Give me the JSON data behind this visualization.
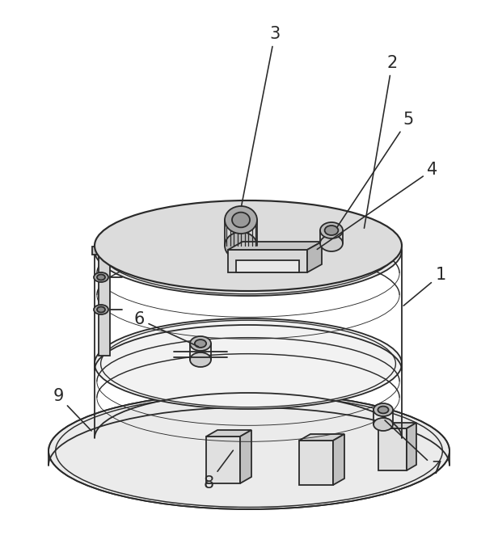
{
  "bg_color": "#ffffff",
  "line_color": "#2a2a2a",
  "line_width": 1.3,
  "fill_top": "#e8e8e8",
  "fill_body": "#f0f0f0",
  "fill_side": "#d8d8d8",
  "fill_base": "#ececec",
  "fill_dark": "#c8c8c8",
  "label_fontsize": 15,
  "figsize": [
    6.16,
    6.73
  ],
  "dpi": 100
}
